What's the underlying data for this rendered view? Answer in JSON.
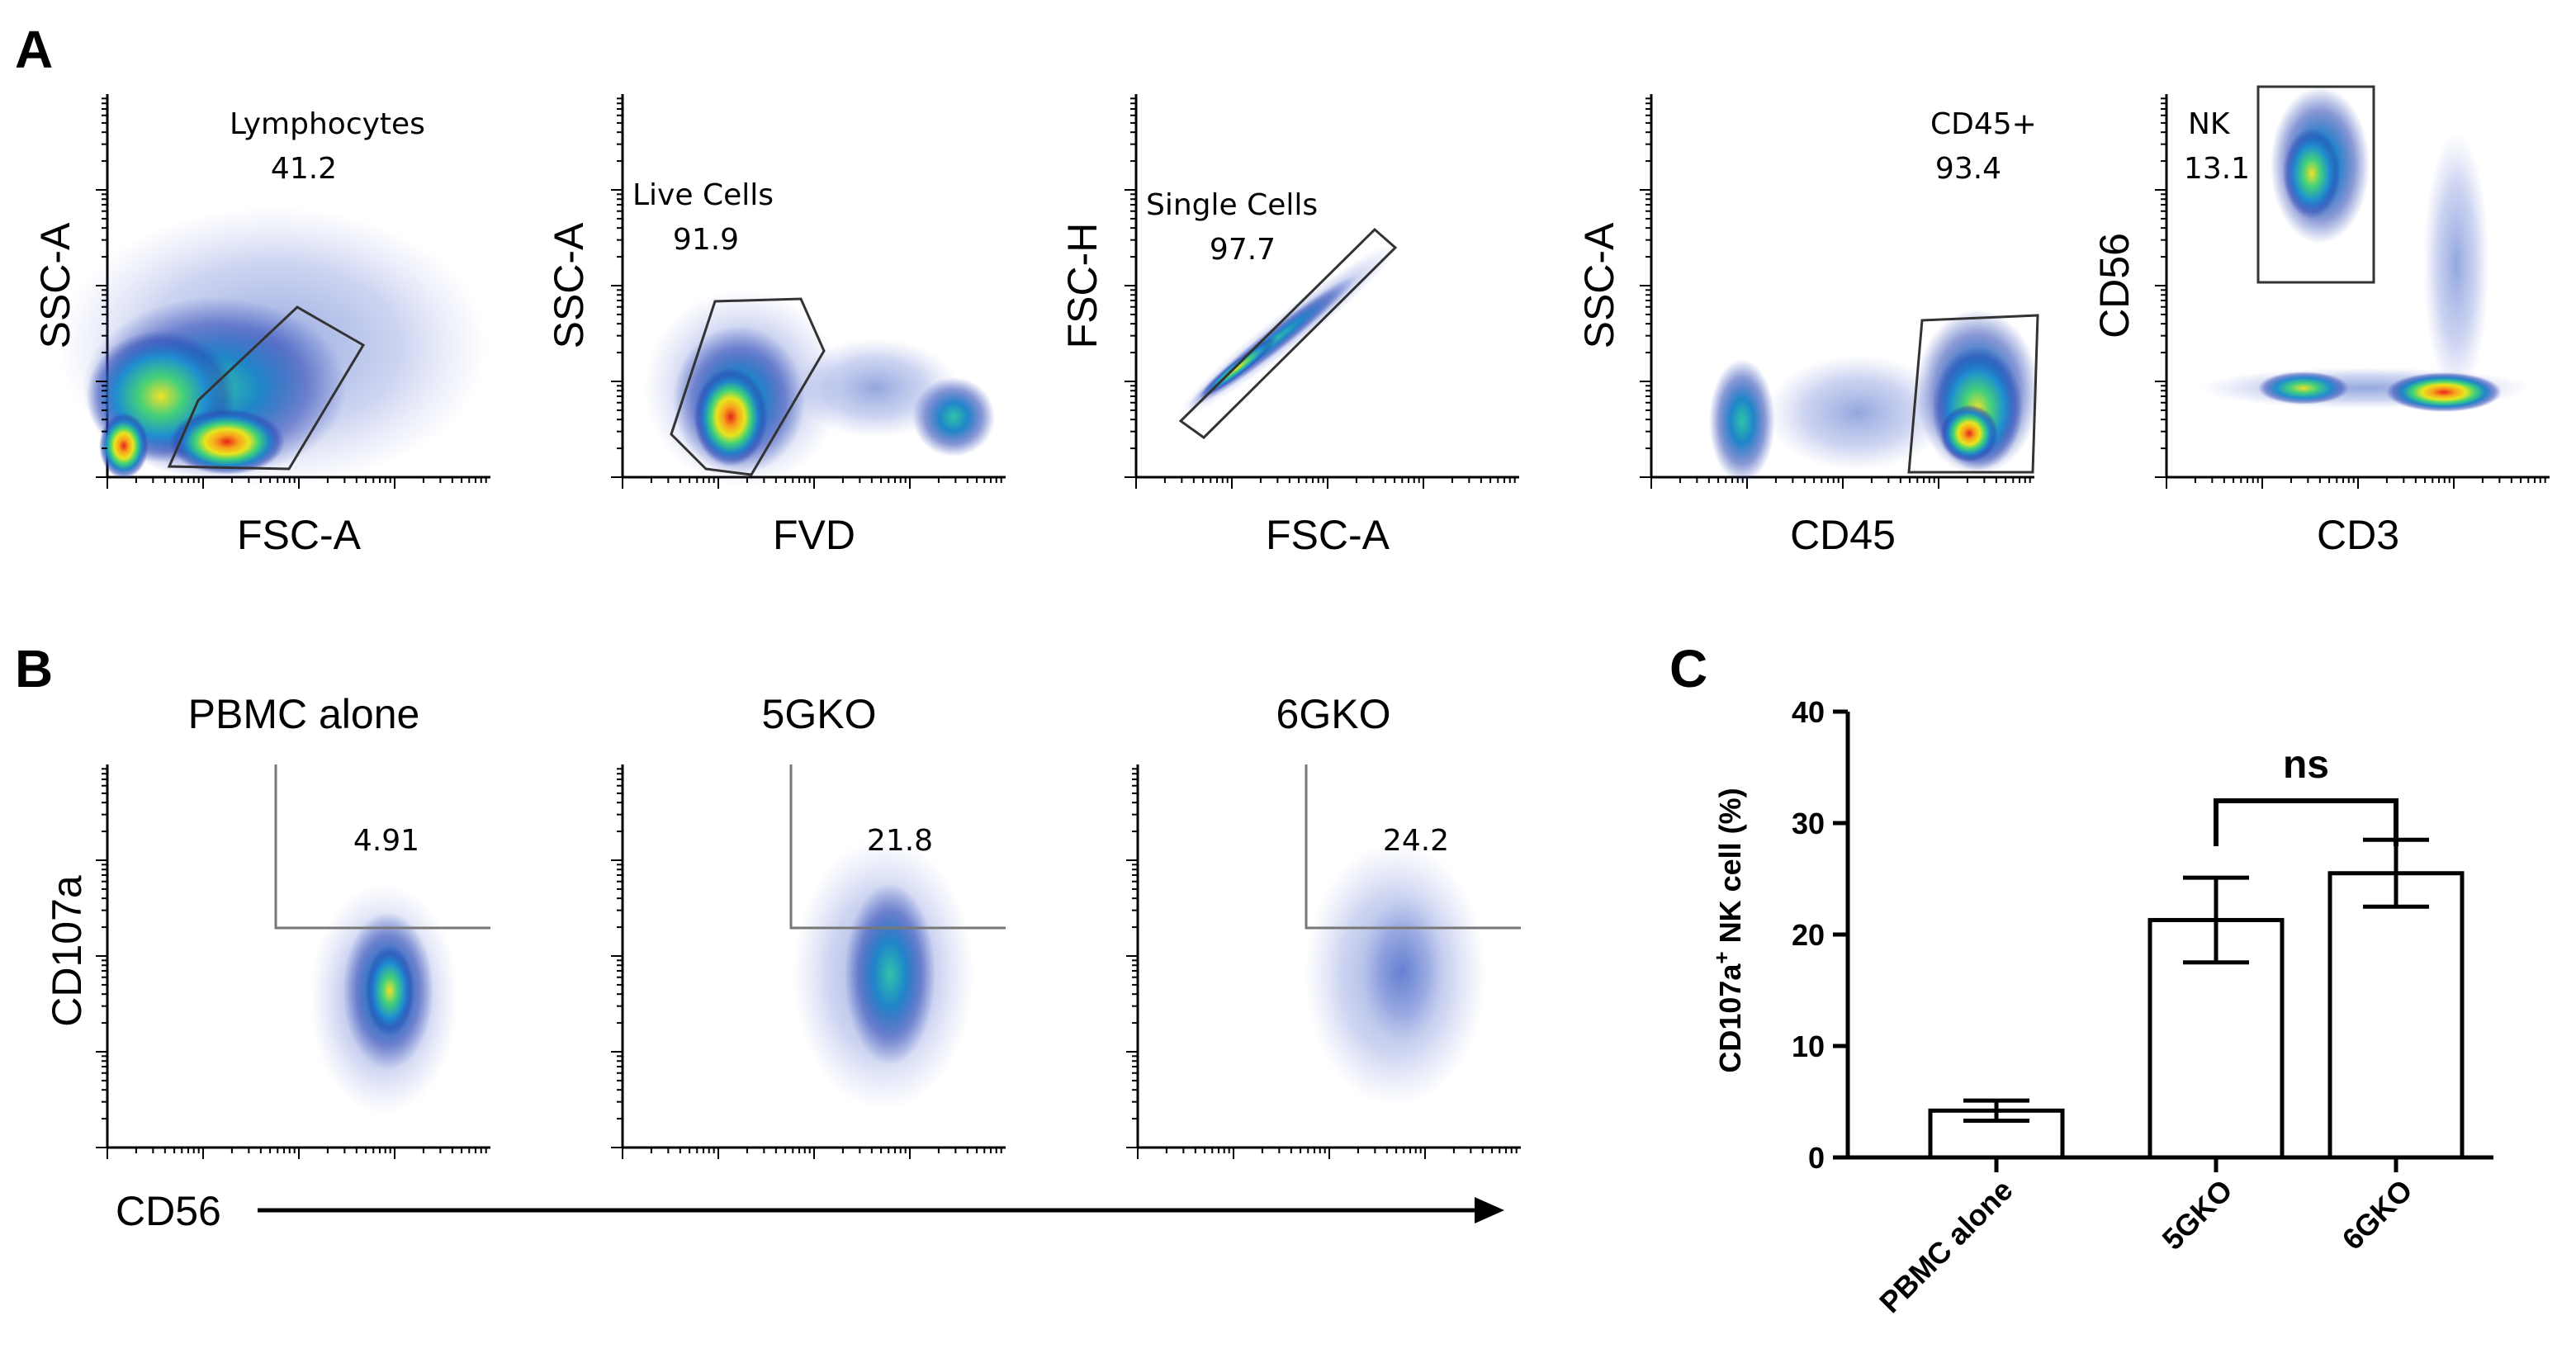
{
  "panel_letters": {
    "a": "A",
    "b": "B",
    "c": "C"
  },
  "chart_data": [
    {
      "type": "scatter",
      "panel": "A",
      "title": "",
      "xlabel": "FSC-A",
      "ylabel": "SSC-A",
      "gate": {
        "name": "Lymphocytes",
        "value": "41.2"
      }
    },
    {
      "type": "scatter",
      "panel": "A",
      "title": "",
      "xlabel": "FVD",
      "ylabel": "SSC-A",
      "gate": {
        "name": "Live Cells",
        "value": "91.9"
      }
    },
    {
      "type": "scatter",
      "panel": "A",
      "title": "",
      "xlabel": "FSC-A",
      "ylabel": "FSC-H",
      "gate": {
        "name": "Single Cells",
        "value": "97.7"
      }
    },
    {
      "type": "scatter",
      "panel": "A",
      "title": "",
      "xlabel": "CD45",
      "ylabel": "SSC-A",
      "gate": {
        "name": "CD45+",
        "value": "93.4"
      }
    },
    {
      "type": "scatter",
      "panel": "A",
      "title": "",
      "xlabel": "CD3",
      "ylabel": "CD56",
      "gate": {
        "name": "NK",
        "value": "13.1"
      }
    },
    {
      "type": "scatter",
      "panel": "B",
      "title": "PBMC alone",
      "xlabel": "CD56",
      "ylabel": "CD107a",
      "gate": {
        "name": "",
        "value": "4.91"
      }
    },
    {
      "type": "scatter",
      "panel": "B",
      "title": "5GKO",
      "xlabel": "CD56",
      "ylabel": "CD107a",
      "gate": {
        "name": "",
        "value": "21.8"
      }
    },
    {
      "type": "scatter",
      "panel": "B",
      "title": "6GKO",
      "xlabel": "CD56",
      "ylabel": "CD107a",
      "gate": {
        "name": "",
        "value": "24.2"
      }
    },
    {
      "type": "bar",
      "panel": "C",
      "categories": [
        "PBMC alone",
        "5GKO",
        "6GKO"
      ],
      "values": [
        4.2,
        21.3,
        25.5
      ],
      "errors": [
        0.9,
        3.8,
        3.0
      ],
      "ylabel": "CD107a+ NK cell (%)",
      "ylabel_main": "CD107a",
      "ylabel_sup": "+",
      "ylabel_rest": " NK cell (%)",
      "ylim": [
        0,
        40
      ],
      "yticks": [
        "0",
        "10",
        "20",
        "30",
        "40"
      ],
      "annotation": "ns"
    }
  ]
}
